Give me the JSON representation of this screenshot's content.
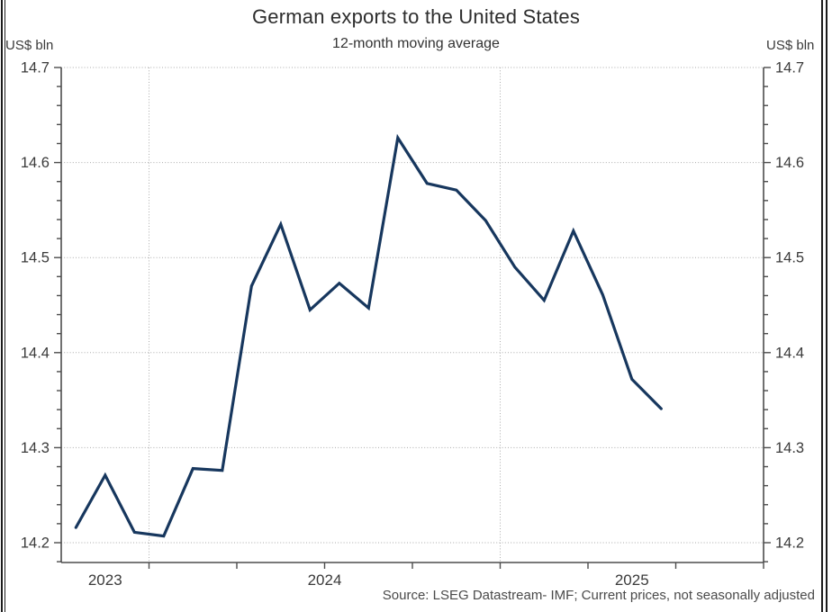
{
  "window": {
    "background": "#ffffff",
    "frame_color": "#1c1c1c"
  },
  "header": {
    "title": "German exports to the United States",
    "subtitle": "12-month moving average"
  },
  "axes": {
    "left_unit_label": "US$ bln",
    "right_unit_label": "US$ bln",
    "y_ticks": [
      14.7,
      14.6,
      14.5,
      14.4,
      14.3,
      14.2
    ],
    "y_minor_step": 0.02,
    "x_year_labels": [
      "2023",
      "2024",
      "2025"
    ],
    "tick_label_color": "#3a3a3a",
    "axis_color": "#4d4d4d",
    "grid_color": "#ababab"
  },
  "footer": {
    "source": "Source: LSEG Datastream- IMF; Current prices, not seasonally adjusted"
  },
  "chart_data": {
    "type": "line",
    "title": "German exports to the United States",
    "subtitle": "12-month moving average",
    "ylabel": "US$ bln",
    "ylim": [
      14.2,
      14.7
    ],
    "x_range_months": [
      "Oct 2023",
      "Oct 2025"
    ],
    "grid": "dotted horizontal lines every 0.1; dotted vertical lines at year boundaries (Jan 2024, Jan 2025)",
    "legend_position": "none",
    "line_color": "#17375e",
    "x": [
      "Oct 2023",
      "Nov 2023",
      "Dec 2023",
      "Jan 2024",
      "Feb 2024",
      "Mar 2024",
      "Apr 2024",
      "May 2024",
      "Jun 2024",
      "Jul 2024",
      "Aug 2024",
      "Sep 2024",
      "Oct 2024",
      "Nov 2024",
      "Dec 2024",
      "Jan 2025",
      "Feb 2025",
      "Mar 2025",
      "Apr 2025",
      "May 2025",
      "Jun 2025"
    ],
    "series": [
      {
        "name": "German exports to the United States, 12-month moving average (US$ bln)",
        "values": [
          14.216,
          14.271,
          14.211,
          14.207,
          14.278,
          14.276,
          14.47,
          14.535,
          14.445,
          14.473,
          14.447,
          14.626,
          14.578,
          14.571,
          14.539,
          14.49,
          14.455,
          14.528,
          14.461,
          14.372,
          14.341
        ]
      }
    ]
  }
}
